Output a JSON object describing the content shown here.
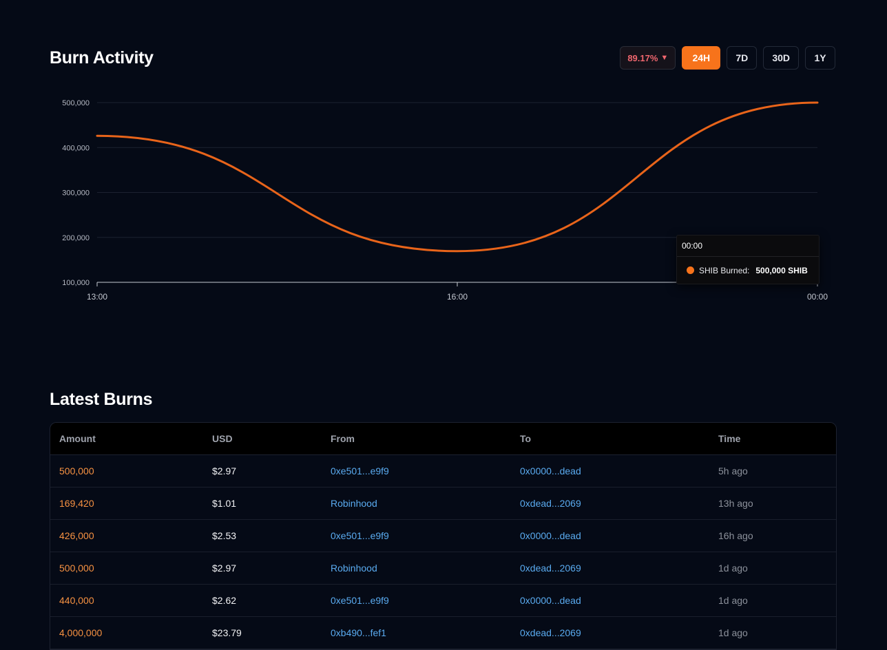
{
  "burn_activity": {
    "title": "Burn Activity",
    "change_badge": {
      "value": "89.17%",
      "direction_icon": "triangle-down-icon",
      "color": "#f0666e"
    },
    "ranges": [
      {
        "label": "24H",
        "active": true
      },
      {
        "label": "7D",
        "active": false
      },
      {
        "label": "30D",
        "active": false
      },
      {
        "label": "1Y",
        "active": false
      }
    ],
    "accent_color": "#f7731b"
  },
  "chart_data": {
    "type": "line",
    "x": [
      "13:00",
      "16:00",
      "00:00"
    ],
    "series": [
      {
        "name": "SHIB Burned",
        "values": [
          426000,
          169420,
          500000
        ],
        "color": "#e8641a"
      }
    ],
    "ylim": [
      100000,
      500000
    ],
    "y_ticks": [
      "100,000",
      "200,000",
      "300,000",
      "400,000",
      "500,000"
    ],
    "x_ticks": [
      "13:00",
      "16:00",
      "00:00"
    ],
    "grid": true,
    "tooltip": {
      "time": "00:00",
      "label": "SHIB Burned:",
      "value": "500,000 SHIB"
    }
  },
  "latest_burns": {
    "title": "Latest Burns",
    "columns": [
      "Amount",
      "USD",
      "From",
      "To",
      "Time"
    ],
    "rows": [
      {
        "amount": "500,000",
        "usd": "$2.97",
        "from": "0xe501...e9f9",
        "to": "0x0000...dead",
        "time": "5h ago"
      },
      {
        "amount": "169,420",
        "usd": "$1.01",
        "from": "Robinhood",
        "to": "0xdead...2069",
        "time": "13h ago"
      },
      {
        "amount": "426,000",
        "usd": "$2.53",
        "from": "0xe501...e9f9",
        "to": "0x0000...dead",
        "time": "16h ago"
      },
      {
        "amount": "500,000",
        "usd": "$2.97",
        "from": "Robinhood",
        "to": "0xdead...2069",
        "time": "1d ago"
      },
      {
        "amount": "440,000",
        "usd": "$2.62",
        "from": "0xe501...e9f9",
        "to": "0x0000...dead",
        "time": "1d ago"
      },
      {
        "amount": "4,000,000",
        "usd": "$23.79",
        "from": "0xb490...fef1",
        "to": "0xdead...2069",
        "time": "1d ago"
      }
    ]
  }
}
